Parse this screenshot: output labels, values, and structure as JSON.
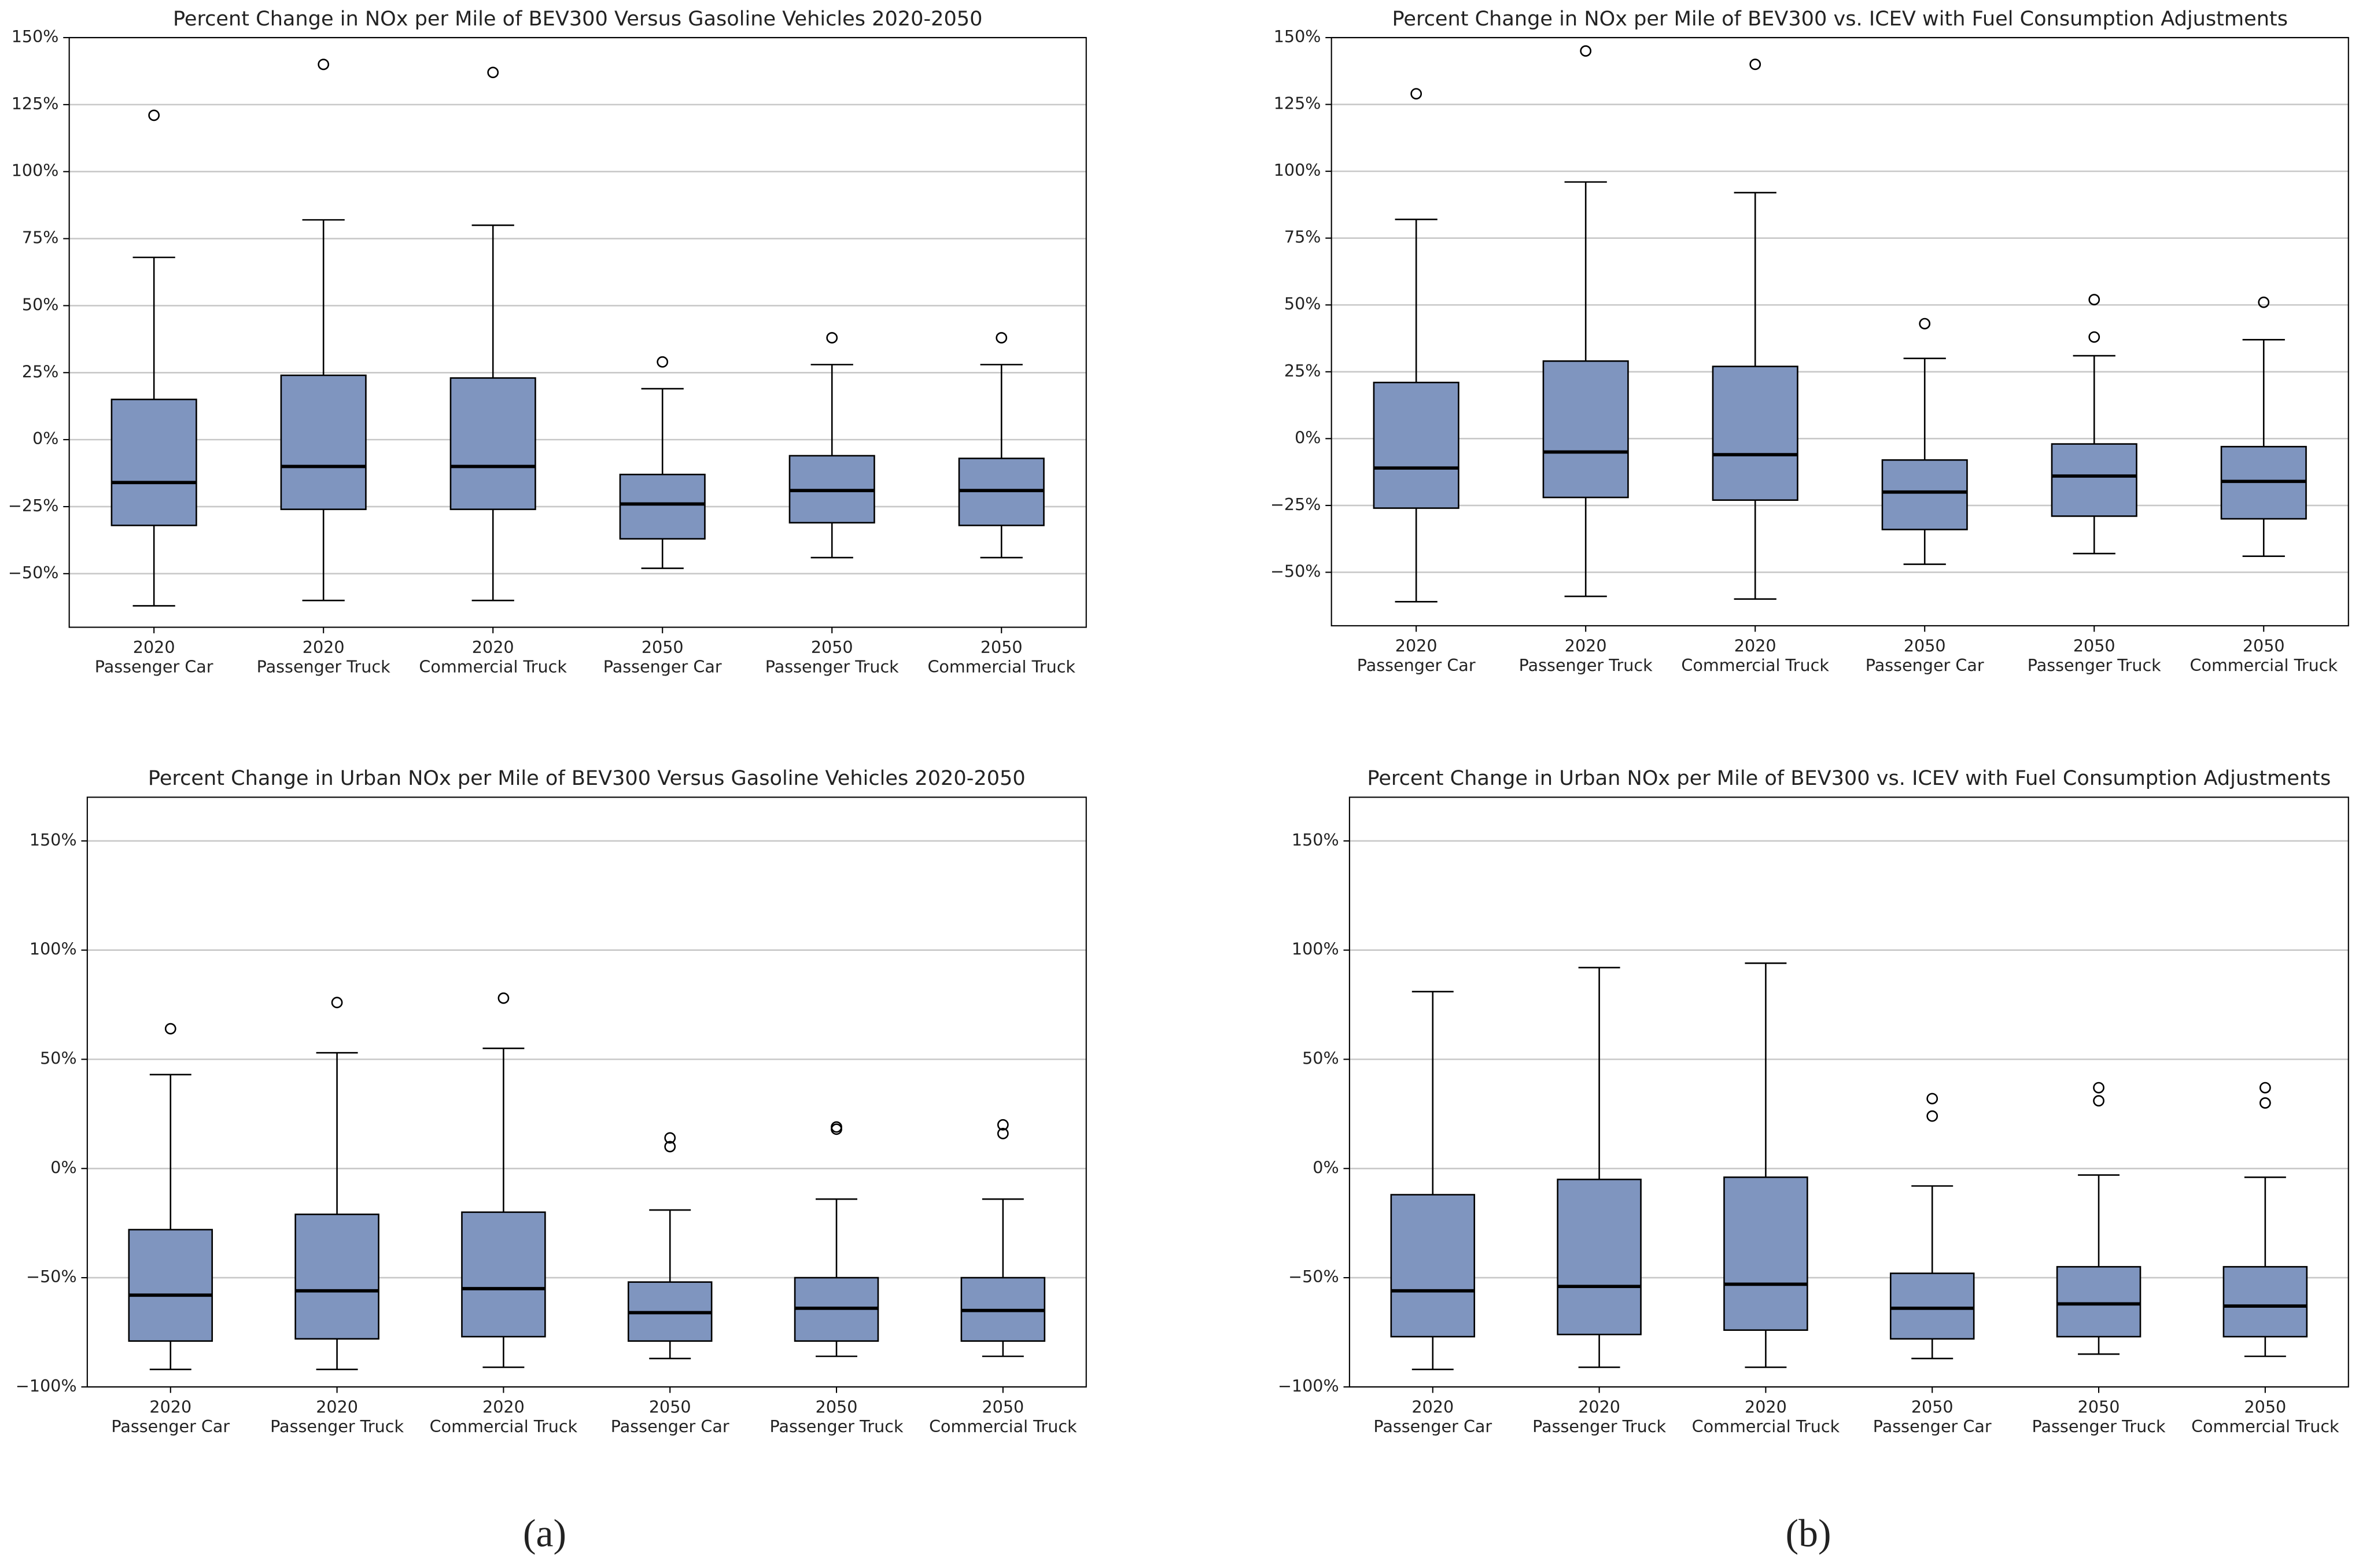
{
  "chart_data": [
    {
      "type": "box",
      "title": "Percent Change in NOx per Mile of BEV300 Versus Gasoline Vehicles 2020-2050",
      "categories": [
        [
          "2020",
          "Passenger Car"
        ],
        [
          "2020",
          "Passenger Truck"
        ],
        [
          "2020",
          "Commercial Truck"
        ],
        [
          "2050",
          "Passenger Car"
        ],
        [
          "2050",
          "Passenger Truck"
        ],
        [
          "2050",
          "Commercial Truck"
        ]
      ],
      "color": "#7f95bf",
      "grid": true,
      "ylim": [
        -70,
        150
      ],
      "yticks": [
        {
          "value": -50,
          "label": "−50%"
        },
        {
          "value": -25,
          "label": "−25%"
        },
        {
          "value": 0,
          "label": "0%"
        },
        {
          "value": 25,
          "label": "25%"
        },
        {
          "value": 50,
          "label": "50%"
        },
        {
          "value": 75,
          "label": "75%"
        },
        {
          "value": 100,
          "label": "100%"
        },
        {
          "value": 125,
          "label": "125%"
        },
        {
          "value": 150,
          "label": "150%"
        }
      ],
      "boxes": [
        {
          "whislo": -62,
          "q1": -32,
          "med": -16,
          "q3": 15,
          "whishi": 68,
          "fliers": [
            121
          ]
        },
        {
          "whislo": -60,
          "q1": -26,
          "med": -10,
          "q3": 24,
          "whishi": 82,
          "fliers": [
            140
          ]
        },
        {
          "whislo": -60,
          "q1": -26,
          "med": -10,
          "q3": 23,
          "whishi": 80,
          "fliers": [
            137
          ]
        },
        {
          "whislo": -48,
          "q1": -37,
          "med": -24,
          "q3": -13,
          "whishi": 19,
          "fliers": [
            29
          ]
        },
        {
          "whislo": -44,
          "q1": -31,
          "med": -19,
          "q3": -6,
          "whishi": 28,
          "fliers": [
            38
          ]
        },
        {
          "whislo": -44,
          "q1": -32,
          "med": -19,
          "q3": -7,
          "whishi": 28,
          "fliers": [
            38
          ]
        }
      ]
    },
    {
      "type": "box",
      "title": "Percent Change in NOx per Mile of BEV300 vs. ICEV with Fuel Consumption Adjustments",
      "categories": [
        [
          "2020",
          "Passenger Car"
        ],
        [
          "2020",
          "Passenger Truck"
        ],
        [
          "2020",
          "Commercial Truck"
        ],
        [
          "2050",
          "Passenger Car"
        ],
        [
          "2050",
          "Passenger Truck"
        ],
        [
          "2050",
          "Commercial Truck"
        ]
      ],
      "color": "#7f95bf",
      "grid": true,
      "ylim": [
        -70,
        150
      ],
      "yticks": [
        {
          "value": -50,
          "label": "−50%"
        },
        {
          "value": -25,
          "label": "−25%"
        },
        {
          "value": 0,
          "label": "0%"
        },
        {
          "value": 25,
          "label": "25%"
        },
        {
          "value": 50,
          "label": "50%"
        },
        {
          "value": 75,
          "label": "75%"
        },
        {
          "value": 100,
          "label": "100%"
        },
        {
          "value": 125,
          "label": "125%"
        },
        {
          "value": 150,
          "label": "150%"
        }
      ],
      "boxes": [
        {
          "whislo": -61,
          "q1": -26,
          "med": -11,
          "q3": 21,
          "whishi": 82,
          "fliers": [
            129
          ]
        },
        {
          "whislo": -59,
          "q1": -22,
          "med": -5,
          "q3": 29,
          "whishi": 96,
          "fliers": [
            145
          ]
        },
        {
          "whislo": -60,
          "q1": -23,
          "med": -6,
          "q3": 27,
          "whishi": 92,
          "fliers": [
            140
          ]
        },
        {
          "whislo": -47,
          "q1": -34,
          "med": -20,
          "q3": -8,
          "whishi": 30,
          "fliers": [
            43
          ]
        },
        {
          "whislo": -43,
          "q1": -29,
          "med": -14,
          "q3": -2,
          "whishi": 31,
          "fliers": [
            38,
            52
          ]
        },
        {
          "whislo": -44,
          "q1": -30,
          "med": -16,
          "q3": -3,
          "whishi": 37,
          "fliers": [
            51
          ]
        }
      ]
    },
    {
      "type": "box",
      "title": "Percent Change in Urban NOx per Mile of BEV300 Versus Gasoline Vehicles 2020-2050",
      "categories": [
        [
          "2020",
          "Passenger Car"
        ],
        [
          "2020",
          "Passenger Truck"
        ],
        [
          "2020",
          "Commercial Truck"
        ],
        [
          "2050",
          "Passenger Car"
        ],
        [
          "2050",
          "Passenger Truck"
        ],
        [
          "2050",
          "Commercial Truck"
        ]
      ],
      "color": "#7f95bf",
      "grid": true,
      "ylim": [
        -100,
        170
      ],
      "yticks": [
        {
          "value": -100,
          "label": "−100%"
        },
        {
          "value": -50,
          "label": "−50%"
        },
        {
          "value": 0,
          "label": "0%"
        },
        {
          "value": 50,
          "label": "50%"
        },
        {
          "value": 100,
          "label": "100%"
        },
        {
          "value": 150,
          "label": "150%"
        }
      ],
      "boxes": [
        {
          "whislo": -92,
          "q1": -79,
          "med": -58,
          "q3": -28,
          "whishi": 43,
          "fliers": [
            64
          ]
        },
        {
          "whislo": -92,
          "q1": -78,
          "med": -56,
          "q3": -21,
          "whishi": 53,
          "fliers": [
            76
          ]
        },
        {
          "whislo": -91,
          "q1": -77,
          "med": -55,
          "q3": -20,
          "whishi": 55,
          "fliers": [
            78
          ]
        },
        {
          "whislo": -87,
          "q1": -79,
          "med": -66,
          "q3": -52,
          "whishi": -19,
          "fliers": [
            14,
            10
          ]
        },
        {
          "whislo": -86,
          "q1": -79,
          "med": -64,
          "q3": -50,
          "whishi": -14,
          "fliers": [
            19,
            18
          ]
        },
        {
          "whislo": -86,
          "q1": -79,
          "med": -65,
          "q3": -50,
          "whishi": -14,
          "fliers": [
            20,
            16
          ]
        }
      ]
    },
    {
      "type": "box",
      "title": "Percent Change in Urban NOx per Mile of BEV300 vs. ICEV with Fuel Consumption Adjustments",
      "categories": [
        [
          "2020",
          "Passenger Car"
        ],
        [
          "2020",
          "Passenger Truck"
        ],
        [
          "2020",
          "Commercial Truck"
        ],
        [
          "2050",
          "Passenger Car"
        ],
        [
          "2050",
          "Passenger Truck"
        ],
        [
          "2050",
          "Commercial Truck"
        ]
      ],
      "color": "#7f95bf",
      "grid": true,
      "ylim": [
        -100,
        170
      ],
      "yticks": [
        {
          "value": -100,
          "label": "−100%"
        },
        {
          "value": -50,
          "label": "−50%"
        },
        {
          "value": 0,
          "label": "0%"
        },
        {
          "value": 50,
          "label": "50%"
        },
        {
          "value": 100,
          "label": "100%"
        },
        {
          "value": 150,
          "label": "150%"
        }
      ],
      "boxes": [
        {
          "whislo": -92,
          "q1": -77,
          "med": -56,
          "q3": -12,
          "whishi": 81,
          "fliers": []
        },
        {
          "whislo": -91,
          "q1": -76,
          "med": -54,
          "q3": -5,
          "whishi": 92,
          "fliers": []
        },
        {
          "whislo": -91,
          "q1": -74,
          "med": -53,
          "q3": -4,
          "whishi": 94,
          "fliers": []
        },
        {
          "whislo": -87,
          "q1": -78,
          "med": -64,
          "q3": -48,
          "whishi": -8,
          "fliers": [
            32,
            24
          ]
        },
        {
          "whislo": -85,
          "q1": -77,
          "med": -62,
          "q3": -45,
          "whishi": -3,
          "fliers": [
            37,
            31
          ]
        },
        {
          "whislo": -86,
          "q1": -77,
          "med": -63,
          "q3": -45,
          "whishi": -4,
          "fliers": [
            37,
            30
          ]
        }
      ]
    }
  ],
  "panel_labels": [
    "(a)",
    "(b)"
  ]
}
